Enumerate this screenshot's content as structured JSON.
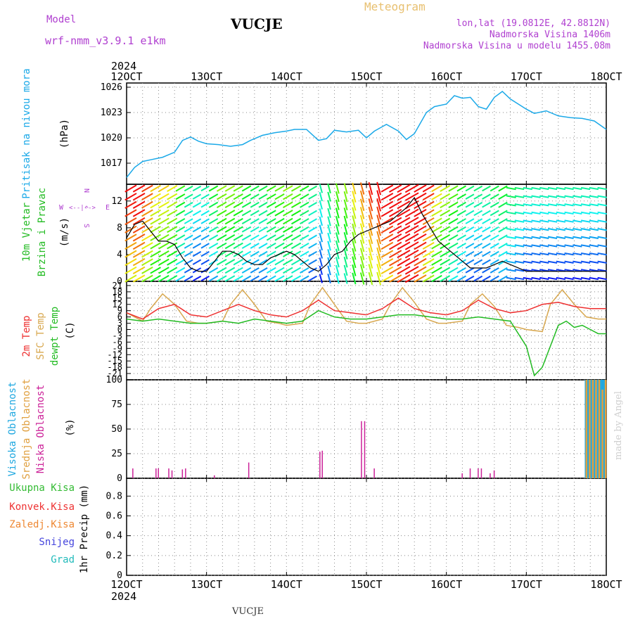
{
  "header": {
    "model_label": "Model",
    "model_name": "wrf-nmm_v3.9.1 e1km",
    "location": "VUCJE",
    "product": "Meteogram",
    "lonlat": "lon,lat (19.0812E, 42.8812N)",
    "elevation": "Nadmorska Visina 1406m",
    "model_elevation": "Nadmorska Visina u modelu 1455.08m",
    "footer": "VUCJE",
    "credit": "made by Angel"
  },
  "x_axis": {
    "year": "2024",
    "ticks": [
      "12OCT",
      "13OCT",
      "14OCT",
      "15OCT",
      "16OCT",
      "17OCT",
      "18OCT"
    ],
    "tick_values": [
      0,
      1,
      2,
      3,
      4,
      5,
      6
    ]
  },
  "colors": {
    "pressure": "#1ba9e8",
    "t2m": "#ee3030",
    "tsfc": "#d8a850",
    "dewpt": "#22bb22",
    "high_cloud": "#20a8e0",
    "mid_cloud": "#e0a040",
    "low_cloud": "#cc2299",
    "total_precip": "#33bb33",
    "conv_precip": "#ee3333",
    "frozen_precip": "#ee8833",
    "snow": "#4444dd",
    "graupel": "#22bbbb",
    "wind_label": "#22bb22",
    "compass": "#b040d0"
  },
  "chart_data": [
    {
      "type": "line",
      "panel": "pressure",
      "ylabel": "Pritisak na nivou mora",
      "unit": "(hPa)",
      "yticks": [
        1017,
        1020,
        1023,
        1026
      ],
      "ylim": [
        1014.5,
        1026.5
      ],
      "series": [
        {
          "name": "Pritisak na nivou mora",
          "color_key": "pressure",
          "x": [
            0,
            0.1,
            0.2,
            0.3,
            0.45,
            0.6,
            0.7,
            0.8,
            0.9,
            1.0,
            1.15,
            1.3,
            1.45,
            1.55,
            1.7,
            1.85,
            2.0,
            2.1,
            2.25,
            2.4,
            2.5,
            2.6,
            2.75,
            2.9,
            3.0,
            3.1,
            3.25,
            3.4,
            3.5,
            3.6,
            3.75,
            3.85,
            4.0,
            4.1,
            4.2,
            4.3,
            4.4,
            4.5,
            4.6,
            4.7,
            4.8,
            4.9,
            5.0,
            5.1,
            5.25,
            5.4,
            5.55,
            5.7,
            5.85,
            6.0
          ],
          "y": [
            1015.3,
            1016.5,
            1017.2,
            1017.4,
            1017.7,
            1018.3,
            1019.7,
            1020.1,
            1019.6,
            1019.3,
            1019.2,
            1019.0,
            1019.2,
            1019.7,
            1020.3,
            1020.6,
            1020.8,
            1021.0,
            1021.0,
            1019.7,
            1019.9,
            1020.9,
            1020.7,
            1020.9,
            1020.0,
            1020.8,
            1021.6,
            1020.8,
            1019.8,
            1020.5,
            1023.0,
            1023.7,
            1024.0,
            1025.0,
            1024.7,
            1024.8,
            1023.7,
            1023.4,
            1024.8,
            1025.5,
            1024.6,
            1024.0,
            1023.4,
            1022.9,
            1023.2,
            1022.6,
            1022.4,
            1022.3,
            1022.0,
            1021.0
          ]
        }
      ]
    },
    {
      "type": "line",
      "panel": "wind",
      "ylabel": "10m Vjetar Brzina i Pravac",
      "unit": "(m/s)",
      "yticks": [
        0,
        4,
        8,
        12
      ],
      "ylim": [
        0,
        14.5
      ],
      "compass": {
        "n": "N",
        "s": "S",
        "e": "E",
        "w": "W"
      },
      "series": [
        {
          "name": "Brzina",
          "color_key": "wind_speed",
          "x": [
            0,
            0.1,
            0.2,
            0.3,
            0.4,
            0.5,
            0.6,
            0.7,
            0.8,
            0.9,
            1.0,
            1.1,
            1.2,
            1.3,
            1.4,
            1.5,
            1.6,
            1.7,
            1.8,
            1.9,
            2.0,
            2.1,
            2.2,
            2.3,
            2.4,
            2.5,
            2.6,
            2.7,
            2.8,
            2.9,
            3.0,
            3.1,
            3.2,
            3.3,
            3.4,
            3.5,
            3.6,
            3.7,
            3.8,
            3.9,
            4.0,
            4.1,
            4.2,
            4.3,
            4.4,
            4.5,
            4.6,
            4.7,
            4.8,
            4.9,
            5.0,
            5.1,
            5.2,
            5.3,
            5.4,
            5.5,
            5.6,
            5.7,
            5.8,
            5.9,
            6.0
          ],
          "y": [
            6.5,
            8.5,
            9.0,
            7.5,
            6.0,
            6.0,
            5.5,
            3.5,
            2.0,
            1.5,
            1.5,
            3.0,
            4.5,
            4.5,
            4.0,
            3.0,
            2.5,
            2.5,
            3.5,
            4.0,
            4.5,
            4.0,
            3.0,
            2.0,
            1.5,
            2.5,
            4.0,
            4.5,
            6.0,
            7.0,
            7.5,
            8.0,
            8.5,
            9.0,
            10.0,
            11.0,
            12.5,
            10.0,
            8.0,
            6.0,
            5.0,
            4.0,
            3.0,
            2.0,
            2.0,
            2.0,
            2.5,
            3.0,
            2.5,
            2.0,
            1.5,
            1.5,
            1.5,
            1.5,
            1.5,
            1.5,
            1.5,
            1.5,
            1.5,
            1.5,
            1.5
          ]
        }
      ]
    },
    {
      "type": "line",
      "panel": "temperature",
      "labels": [
        "2m Temp",
        "SFC Temp",
        "dewpt Temp"
      ],
      "unit": "(C)",
      "yticks": [
        21,
        18,
        15,
        12,
        9,
        6,
        3,
        0,
        -3,
        -6,
        -9,
        -12,
        -15,
        -18,
        -21
      ],
      "ylim": [
        -24,
        23
      ],
      "series": [
        {
          "name": "2m Temp",
          "color_key": "t2m",
          "x": [
            0,
            0.2,
            0.4,
            0.6,
            0.8,
            1.0,
            1.2,
            1.4,
            1.6,
            1.8,
            2.0,
            2.2,
            2.4,
            2.6,
            2.8,
            3.0,
            3.2,
            3.4,
            3.6,
            3.8,
            4.0,
            4.2,
            4.4,
            4.6,
            4.8,
            5.0,
            5.2,
            5.4,
            5.6,
            5.8,
            6.0
          ],
          "y": [
            8,
            5,
            10,
            12,
            7,
            6,
            9,
            12,
            9,
            7,
            6,
            9,
            14,
            9,
            8,
            7,
            10,
            15,
            10,
            8,
            7,
            9,
            14,
            10,
            8,
            9,
            12,
            13,
            11,
            10,
            10
          ]
        },
        {
          "name": "SFC Temp",
          "color_key": "tsfc",
          "x": [
            0,
            0.2,
            0.3,
            0.45,
            0.6,
            0.75,
            0.9,
            1.0,
            1.2,
            1.3,
            1.45,
            1.6,
            1.75,
            1.9,
            2.0,
            2.2,
            2.3,
            2.45,
            2.6,
            2.75,
            2.9,
            3.0,
            3.2,
            3.3,
            3.45,
            3.6,
            3.75,
            3.9,
            4.0,
            4.2,
            4.3,
            4.45,
            4.6,
            4.75,
            4.9,
            5.0,
            5.2,
            5.3,
            5.45,
            5.6,
            5.75,
            5.9,
            6.0
          ],
          "y": [
            8,
            4,
            10,
            17,
            12,
            4,
            3,
            3,
            4,
            12,
            19,
            12,
            4,
            3,
            2,
            3,
            12,
            20,
            12,
            4,
            3,
            3,
            5,
            12,
            20,
            13,
            5,
            3,
            3,
            4,
            12,
            17,
            11,
            2,
            1,
            0,
            -1,
            12,
            19,
            12,
            6,
            5,
            5
          ]
        },
        {
          "name": "dewpt Temp",
          "color_key": "dewpt",
          "x": [
            0,
            0.2,
            0.4,
            0.6,
            0.8,
            1.0,
            1.2,
            1.4,
            1.6,
            1.8,
            2.0,
            2.2,
            2.4,
            2.6,
            2.8,
            3.0,
            3.2,
            3.4,
            3.6,
            3.8,
            4.0,
            4.2,
            4.4,
            4.6,
            4.8,
            5.0,
            5.1,
            5.2,
            5.3,
            5.4,
            5.5,
            5.6,
            5.7,
            5.8,
            5.9,
            6.0
          ],
          "y": [
            5,
            4,
            5,
            4,
            3,
            3,
            4,
            3,
            5,
            4,
            3,
            4,
            9,
            6,
            5,
            5,
            6,
            7,
            7,
            6,
            5,
            5,
            6,
            5,
            4,
            -8,
            -22,
            -18,
            -8,
            2,
            4,
            1,
            2,
            0,
            -2,
            -2
          ]
        }
      ]
    },
    {
      "type": "bar",
      "panel": "clouds",
      "labels": [
        "Visoka Oblacnost",
        "Srednja Oblacnost",
        "Niska Oblacnost"
      ],
      "unit": "(%)",
      "yticks": [
        0,
        25,
        50,
        75,
        100
      ],
      "ylim": [
        0,
        100
      ],
      "series": [
        {
          "name": "Niska Oblacnost",
          "color_key": "low_cloud",
          "x": [
            0.08,
            0.37,
            0.4,
            0.53,
            0.57,
            0.7,
            0.74,
            1.1,
            1.53,
            2.42,
            2.45,
            2.94,
            2.98,
            3.1,
            4.2,
            4.3,
            4.4,
            4.44,
            4.55,
            4.6
          ],
          "y": [
            10,
            10,
            10,
            10,
            8,
            9,
            10,
            3,
            16,
            27,
            28,
            58,
            58,
            10,
            5,
            10,
            10,
            10,
            5,
            8
          ]
        },
        {
          "name": "Visoka Oblacnost",
          "color_key": "high_cloud",
          "x": [
            5.74,
            5.76,
            5.78,
            5.8,
            5.82,
            5.84,
            5.86,
            5.88,
            5.9,
            5.92,
            5.94,
            5.96,
            5.98
          ],
          "y": [
            100,
            100,
            100,
            100,
            100,
            100,
            100,
            100,
            100,
            100,
            100,
            100,
            100
          ]
        },
        {
          "name": "Srednja Oblacnost",
          "color_key": "mid_cloud",
          "x": [
            5.75,
            5.79,
            5.83,
            5.87,
            5.91,
            5.95,
            5.99
          ],
          "y": [
            100,
            100,
            100,
            100,
            100,
            90,
            100
          ]
        }
      ]
    },
    {
      "type": "line",
      "panel": "precip",
      "labels": [
        "Ukupna Kisa",
        "Konvek.Kisa",
        "Zaledj.Kisa",
        "Snijeg",
        "Grad"
      ],
      "unit": "1hr Precip (mm)",
      "yticks": [
        0,
        0.2,
        0.4,
        0.6,
        0.8
      ],
      "ylim": [
        0,
        0.98
      ],
      "series": []
    }
  ]
}
